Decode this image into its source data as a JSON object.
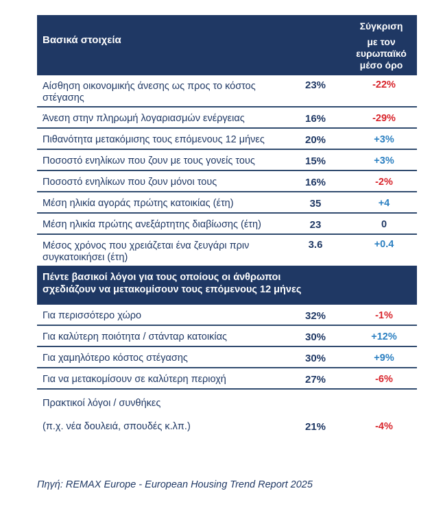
{
  "header": {
    "title": "Βασικά στοιχεία",
    "comparison_line1": "Σύγκριση",
    "comparison_line2": "με τον ευρωπαϊκό μέσο όρο"
  },
  "basic_rows": [
    {
      "label": "Αίσθηση οικονομικής άνεσης ως προς το κόστος στέγασης",
      "value": "23%",
      "diff": "-22%",
      "sign": "neg"
    },
    {
      "label": "Άνεση στην πληρωμή λογαριασμών ενέργειας",
      "value": "16%",
      "diff": "-29%",
      "sign": "neg"
    },
    {
      "label": "Πιθανότητα μετακόμισης τους επόμενους 12 μήνες",
      "value": "20%",
      "diff": "+3%",
      "sign": "pos"
    },
    {
      "label": "Ποσοστό ενηλίκων που ζουν με τους γονείς τους",
      "value": "15%",
      "diff": "+3%",
      "sign": "pos"
    },
    {
      "label": "Ποσοστό ενηλίκων που ζουν μόνοι τους",
      "value": "16%",
      "diff": "-2%",
      "sign": "neg"
    },
    {
      "label": "Μέση ηλικία αγοράς πρώτης κατοικίας (έτη)",
      "value": "35",
      "diff": "+4",
      "sign": "pos"
    },
    {
      "label": "Μέση ηλικία πρώτης ανεξάρτητης διαβίωσης (έτη)",
      "value": "23",
      "diff": "0",
      "sign": "zero"
    },
    {
      "label": "Μέσος χρόνος που χρειάζεται ένα ζευγάρι πριν συγκατοικήσει (έτη)",
      "value": "3.6",
      "diff": "+0.4",
      "sign": "pos"
    }
  ],
  "section2": {
    "title": "Πέντε βασικοί λόγοι για τους οποίους οι άνθρωποι σχεδιάζουν να μετακομίσουν τους επόμενους 12 μήνες"
  },
  "reason_rows": [
    {
      "label": "Για περισσότερο χώρο",
      "value": "32%",
      "diff": "-1%",
      "sign": "neg"
    },
    {
      "label": "Για καλύτερη ποιότητα / στάνταρ κατοικίας",
      "value": "30%",
      "diff": "+12%",
      "sign": "pos"
    },
    {
      "label": "Για χαμηλότερο κόστος στέγασης",
      "value": "30%",
      "diff": "+9%",
      "sign": "pos"
    },
    {
      "label": "Για να μετακομίσουν σε καλύτερη περιοχή",
      "value": "27%",
      "diff": "-6%",
      "sign": "neg"
    }
  ],
  "last_reason": {
    "label_line1": "Πρακτικοί λόγοι / συνθήκες",
    "label_line2": "(π.χ. νέα δουλειά, σπουδές κ.λπ.)",
    "value": "21%",
    "diff": "-4%",
    "sign": "neg"
  },
  "source": "Πηγή: REMAX Europe - European Housing Trend Report 2025",
  "colors": {
    "header_bg": "#1f3864",
    "negative": "#d8232a",
    "positive": "#2a7fc1",
    "text": "#1f3864"
  }
}
